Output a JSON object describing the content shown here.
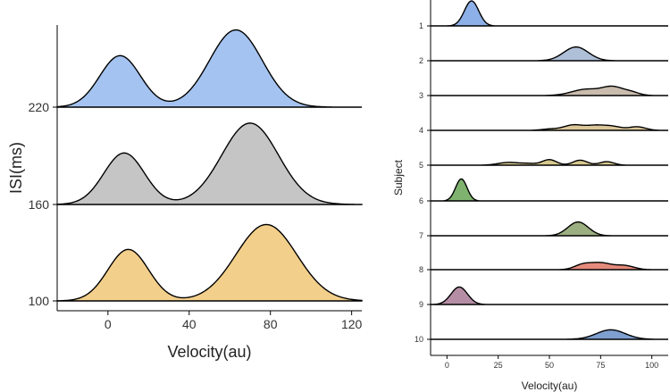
{
  "chart_data": [
    {
      "type": "ridgeline",
      "xlabel": "Velocity(au)",
      "ylabel": "ISI(ms)",
      "xlim": [
        -25,
        125
      ],
      "x_ticks": [
        0,
        40,
        80,
        120
      ],
      "rows": [
        {
          "label": "220",
          "color": "#a4c3f0",
          "peaks": [
            {
              "mu": 6,
              "sigma": 10,
              "h": 0.62
            },
            {
              "mu": 63,
              "sigma": 13,
              "h": 0.93
            }
          ]
        },
        {
          "label": "160",
          "color": "#c5c5c5",
          "peaks": [
            {
              "mu": 8,
              "sigma": 10,
              "h": 0.62
            },
            {
              "mu": 70,
              "sigma": 14,
              "h": 0.98
            }
          ]
        },
        {
          "label": "100",
          "color": "#f3cf8c",
          "peaks": [
            {
              "mu": 10,
              "sigma": 10,
              "h": 0.62
            },
            {
              "mu": 78,
              "sigma": 15,
              "h": 0.92
            }
          ]
        }
      ]
    },
    {
      "type": "ridgeline",
      "xlabel": "Velocity(au)",
      "ylabel": "Subject",
      "xlim": [
        -8,
        108
      ],
      "x_ticks": [
        0,
        25,
        50,
        75,
        100
      ],
      "rows": [
        {
          "label": "1",
          "color": "#8eb0e8",
          "peaks": [
            {
              "mu": 12,
              "sigma": 3.5,
              "h": 1.0
            }
          ]
        },
        {
          "label": "2",
          "color": "#aebfd8",
          "peaks": [
            {
              "mu": 63,
              "sigma": 6,
              "h": 0.55
            }
          ]
        },
        {
          "label": "3",
          "color": "#c9bcad",
          "peaks": [
            {
              "mu": 68,
              "sigma": 7,
              "h": 0.25
            },
            {
              "mu": 81,
              "sigma": 5,
              "h": 0.32
            },
            {
              "mu": 90,
              "sigma": 4,
              "h": 0.12
            }
          ]
        },
        {
          "label": "4",
          "color": "#dcc79a",
          "peaks": [
            {
              "mu": 50,
              "sigma": 4,
              "h": 0.05
            },
            {
              "mu": 62,
              "sigma": 5,
              "h": 0.22
            },
            {
              "mu": 72,
              "sigma": 4,
              "h": 0.14
            },
            {
              "mu": 80,
              "sigma": 5,
              "h": 0.17
            },
            {
              "mu": 93,
              "sigma": 4,
              "h": 0.14
            }
          ]
        },
        {
          "label": "5",
          "color": "#d6c88e",
          "peaks": [
            {
              "mu": 30,
              "sigma": 5,
              "h": 0.11
            },
            {
              "mu": 50,
              "sigma": 3.5,
              "h": 0.22
            },
            {
              "mu": 65,
              "sigma": 3.5,
              "h": 0.2
            },
            {
              "mu": 78,
              "sigma": 3.5,
              "h": 0.14
            },
            {
              "mu": 40,
              "sigma": 4,
              "h": 0.06
            }
          ]
        },
        {
          "label": "6",
          "color": "#7fb26f",
          "peaks": [
            {
              "mu": 7,
              "sigma": 2.8,
              "h": 0.88
            }
          ]
        },
        {
          "label": "7",
          "color": "#9caf80",
          "peaks": [
            {
              "mu": 64,
              "sigma": 5,
              "h": 0.55
            }
          ]
        },
        {
          "label": "8",
          "color": "#e48a7c",
          "peaks": [
            {
              "mu": 66,
              "sigma": 4,
              "h": 0.17
            },
            {
              "mu": 75,
              "sigma": 5.5,
              "h": 0.27
            },
            {
              "mu": 87,
              "sigma": 4.5,
              "h": 0.15
            }
          ]
        },
        {
          "label": "9",
          "color": "#b58ea5",
          "peaks": [
            {
              "mu": 6,
              "sigma": 4,
              "h": 0.7
            }
          ]
        },
        {
          "label": "10",
          "color": "#7e9fd0",
          "peaks": [
            {
              "mu": 80,
              "sigma": 7,
              "h": 0.38
            }
          ]
        }
      ]
    }
  ]
}
